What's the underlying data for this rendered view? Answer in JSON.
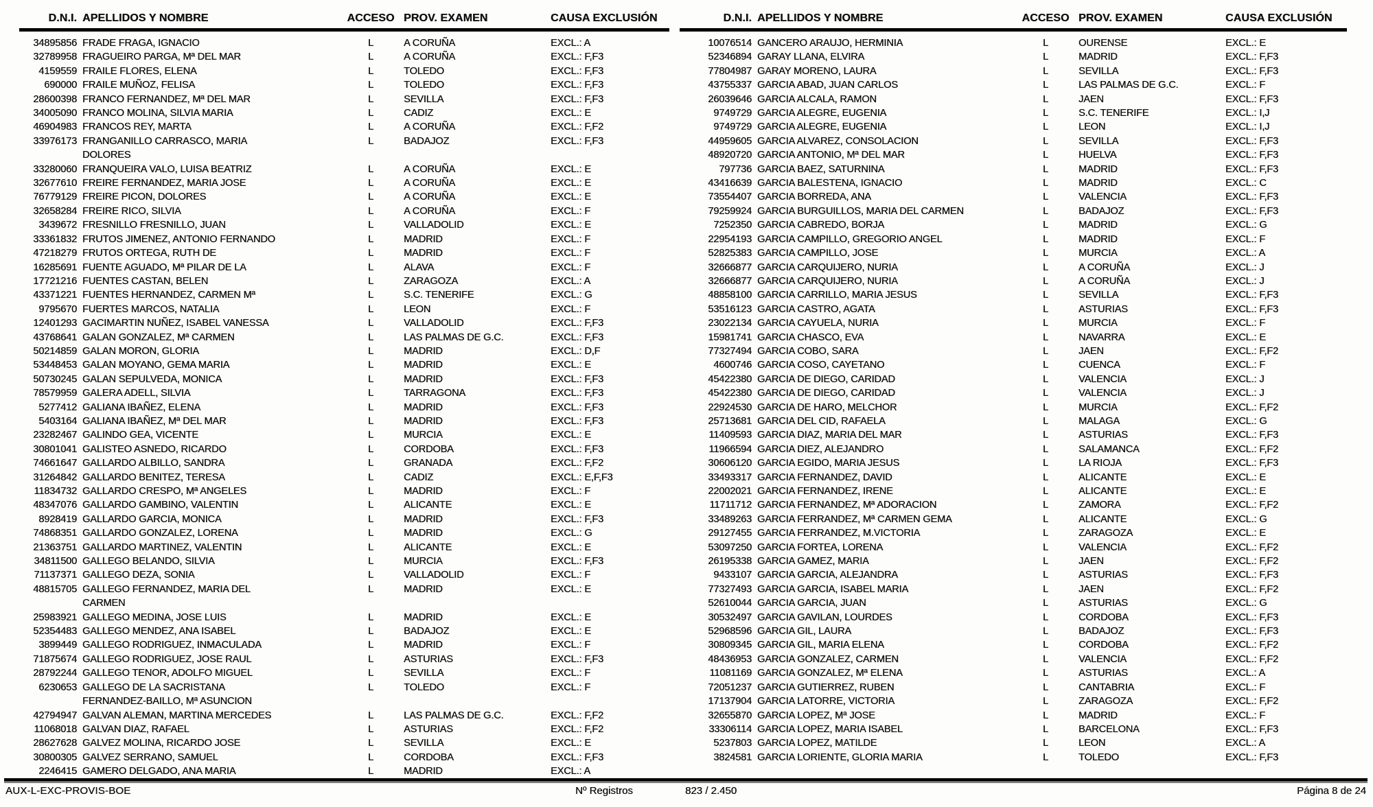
{
  "columns": {
    "dni": "D.N.I.",
    "name": "APELLIDOS Y NOMBRE",
    "acceso": "ACCESO",
    "prov": "PROV. EXAMEN",
    "causa": "CAUSA EXCLUSIÓN"
  },
  "left_rows": [
    {
      "dni": "34895856",
      "name": "FRADE FRAGA, IGNACIO",
      "acceso": "L",
      "prov": "A CORUÑA",
      "causa": "EXCL.: A"
    },
    {
      "dni": "32789958",
      "name": "FRAGUEIRO PARGA, Mª DEL MAR",
      "acceso": "L",
      "prov": "A CORUÑA",
      "causa": "EXCL.: F,F3"
    },
    {
      "dni": "4159559",
      "name": "FRAILE FLORES, ELENA",
      "acceso": "L",
      "prov": "TOLEDO",
      "causa": "EXCL.: F,F3"
    },
    {
      "dni": "690000",
      "name": "FRAILE MUÑOZ, FELISA",
      "acceso": "L",
      "prov": "TOLEDO",
      "causa": "EXCL.: F,F3"
    },
    {
      "dni": "28600398",
      "name": "FRANCO FERNANDEZ, Mª DEL MAR",
      "acceso": "L",
      "prov": "SEVILLA",
      "causa": "EXCL.: F,F3"
    },
    {
      "dni": "34005090",
      "name": "FRANCO MOLINA, SILVIA MARIA",
      "acceso": "L",
      "prov": "CADIZ",
      "causa": "EXCL.: E"
    },
    {
      "dni": "46904983",
      "name": "FRANCOS REY, MARTA",
      "acceso": "L",
      "prov": "A CORUÑA",
      "causa": "EXCL.: F,F2"
    },
    {
      "dni": "33976173",
      "name": "FRANGANILLO CARRASCO, MARIA\nDOLORES",
      "acceso": "L",
      "prov": "BADAJOZ",
      "causa": "EXCL.: F,F3"
    },
    {
      "dni": "33280060",
      "name": "FRANQUEIRA VALO, LUISA BEATRIZ",
      "acceso": "L",
      "prov": "A CORUÑA",
      "causa": "EXCL.: E"
    },
    {
      "dni": "32677610",
      "name": "FREIRE FERNANDEZ, MARIA JOSE",
      "acceso": "L",
      "prov": "A CORUÑA",
      "causa": "EXCL.: E"
    },
    {
      "dni": "76779129",
      "name": "FREIRE PICON, DOLORES",
      "acceso": "L",
      "prov": "A CORUÑA",
      "causa": "EXCL.: E"
    },
    {
      "dni": "32658284",
      "name": "FREIRE RICO, SILVIA",
      "acceso": "L",
      "prov": "A CORUÑA",
      "causa": "EXCL.: F"
    },
    {
      "dni": "3439672",
      "name": "FRESNILLO FRESNILLO, JUAN",
      "acceso": "L",
      "prov": "VALLADOLID",
      "causa": "EXCL.: E"
    },
    {
      "dni": "33361832",
      "name": "FRUTOS JIMENEZ, ANTONIO FERNANDO",
      "acceso": "L",
      "prov": "MADRID",
      "causa": "EXCL.: F"
    },
    {
      "dni": "47218279",
      "name": "FRUTOS ORTEGA, RUTH DE",
      "acceso": "L",
      "prov": "MADRID",
      "causa": "EXCL.: F"
    },
    {
      "dni": "16285691",
      "name": "FUENTE AGUADO, Mª PILAR DE LA",
      "acceso": "L",
      "prov": "ALAVA",
      "causa": "EXCL.: F"
    },
    {
      "dni": "17721216",
      "name": "FUENTES CASTAN, BELEN",
      "acceso": "L",
      "prov": "ZARAGOZA",
      "causa": "EXCL.: A"
    },
    {
      "dni": "43371221",
      "name": "FUENTES HERNANDEZ, CARMEN Mª",
      "acceso": "L",
      "prov": "S.C. TENERIFE",
      "causa": "EXCL.: G"
    },
    {
      "dni": "9795670",
      "name": "FUERTES MARCOS, NATALIA",
      "acceso": "L",
      "prov": "LEON",
      "causa": "EXCL.: F"
    },
    {
      "dni": "12401293",
      "name": "GACIMARTIN NUÑEZ, ISABEL VANESSA",
      "acceso": "L",
      "prov": "VALLADOLID",
      "causa": "EXCL.: F,F3"
    },
    {
      "dni": "43768641",
      "name": "GALAN GONZALEZ, Mª CARMEN",
      "acceso": "L",
      "prov": "LAS PALMAS DE G.C.",
      "causa": "EXCL.: F,F3"
    },
    {
      "dni": "50214859",
      "name": "GALAN MORON, GLORIA",
      "acceso": "L",
      "prov": "MADRID",
      "causa": "EXCL.: D,F"
    },
    {
      "dni": "53448453",
      "name": "GALAN MOYANO, GEMA MARIA",
      "acceso": "L",
      "prov": "MADRID",
      "causa": "EXCL.: E"
    },
    {
      "dni": "50730245",
      "name": "GALAN SEPULVEDA, MONICA",
      "acceso": "L",
      "prov": "MADRID",
      "causa": "EXCL.: F,F3"
    },
    {
      "dni": "78579959",
      "name": "GALERA ADELL, SILVIA",
      "acceso": "L",
      "prov": "TARRAGONA",
      "causa": "EXCL.: F,F3"
    },
    {
      "dni": "5277412",
      "name": "GALIANA IBAÑEZ, ELENA",
      "acceso": "L",
      "prov": "MADRID",
      "causa": "EXCL.: F,F3"
    },
    {
      "dni": "5403164",
      "name": "GALIANA IBAÑEZ, Mª DEL MAR",
      "acceso": "L",
      "prov": "MADRID",
      "causa": "EXCL.: F,F3"
    },
    {
      "dni": "23282467",
      "name": "GALINDO GEA, VICENTE",
      "acceso": "L",
      "prov": "MURCIA",
      "causa": "EXCL.: E"
    },
    {
      "dni": "30801041",
      "name": "GALISTEO ASNEDO, RICARDO",
      "acceso": "L",
      "prov": "CORDOBA",
      "causa": "EXCL.: F,F3"
    },
    {
      "dni": "74661647",
      "name": "GALLARDO ALBILLO, SANDRA",
      "acceso": "L",
      "prov": "GRANADA",
      "causa": "EXCL.: F,F2"
    },
    {
      "dni": "31264842",
      "name": "GALLARDO BENITEZ, TERESA",
      "acceso": "L",
      "prov": "CADIZ",
      "causa": "EXCL.: E,F,F3"
    },
    {
      "dni": "11834732",
      "name": "GALLARDO CRESPO, Mª ANGELES",
      "acceso": "L",
      "prov": "MADRID",
      "causa": "EXCL.: F"
    },
    {
      "dni": "48347076",
      "name": "GALLARDO GAMBINO, VALENTIN",
      "acceso": "L",
      "prov": "ALICANTE",
      "causa": "EXCL.: E"
    },
    {
      "dni": "8928419",
      "name": "GALLARDO GARCIA, MONICA",
      "acceso": "L",
      "prov": "MADRID",
      "causa": "EXCL.: F,F3"
    },
    {
      "dni": "74868351",
      "name": "GALLARDO GONZALEZ, LORENA",
      "acceso": "L",
      "prov": "MADRID",
      "causa": "EXCL.: G"
    },
    {
      "dni": "21363751",
      "name": "GALLARDO MARTINEZ, VALENTIN",
      "acceso": "L",
      "prov": "ALICANTE",
      "causa": "EXCL.: E"
    },
    {
      "dni": "34811500",
      "name": "GALLEGO BELANDO, SILVIA",
      "acceso": "L",
      "prov": "MURCIA",
      "causa": "EXCL.: F,F3"
    },
    {
      "dni": "71137371",
      "name": "GALLEGO DEZA, SONIA",
      "acceso": "L",
      "prov": "VALLADOLID",
      "causa": "EXCL.: F"
    },
    {
      "dni": "48815705",
      "name": "GALLEGO FERNANDEZ, MARIA DEL\nCARMEN",
      "acceso": "L",
      "prov": "MADRID",
      "causa": "EXCL.: E"
    },
    {
      "dni": "25983921",
      "name": "GALLEGO MEDINA, JOSE LUIS",
      "acceso": "L",
      "prov": "MADRID",
      "causa": "EXCL.: E"
    },
    {
      "dni": "52354483",
      "name": "GALLEGO MENDEZ, ANA ISABEL",
      "acceso": "L",
      "prov": "BADAJOZ",
      "causa": "EXCL.: E"
    },
    {
      "dni": "3899449",
      "name": "GALLEGO RODRIGUEZ, INMACULADA",
      "acceso": "L",
      "prov": "MADRID",
      "causa": "EXCL.: F"
    },
    {
      "dni": "71875674",
      "name": "GALLEGO RODRIGUEZ, JOSE RAUL",
      "acceso": "L",
      "prov": "ASTURIAS",
      "causa": "EXCL.: F,F3"
    },
    {
      "dni": "28792244",
      "name": "GALLEGO TENOR, ADOLFO MIGUEL",
      "acceso": "L",
      "prov": "SEVILLA",
      "causa": "EXCL.: F"
    },
    {
      "dni": "6230653",
      "name": "GALLEGO DE LA SACRISTANA\nFERNANDEZ-BAILLO, Mª ASUNCION",
      "acceso": "L",
      "prov": "TOLEDO",
      "causa": "EXCL.: F"
    },
    {
      "dni": "42794947",
      "name": "GALVAN ALEMAN, MARTINA MERCEDES",
      "acceso": "L",
      "prov": "LAS PALMAS DE G.C.",
      "causa": "EXCL.: F,F2"
    },
    {
      "dni": "11068018",
      "name": "GALVAN DIAZ, RAFAEL",
      "acceso": "L",
      "prov": "ASTURIAS",
      "causa": "EXCL.: F,F2"
    },
    {
      "dni": "28627628",
      "name": "GALVEZ MOLINA, RICARDO JOSE",
      "acceso": "L",
      "prov": "SEVILLA",
      "causa": "EXCL.: E"
    },
    {
      "dni": "30800305",
      "name": "GALVEZ SERRANO, SAMUEL",
      "acceso": "L",
      "prov": "CORDOBA",
      "causa": "EXCL.: F,F3"
    },
    {
      "dni": "2246415",
      "name": "GAMERO DELGADO, ANA MARIA",
      "acceso": "L",
      "prov": "MADRID",
      "causa": "EXCL.: A"
    }
  ],
  "right_rows": [
    {
      "dni": "10076514",
      "name": "GANCERO ARAUJO, HERMINIA",
      "acceso": "L",
      "prov": "OURENSE",
      "causa": "EXCL.: E"
    },
    {
      "dni": "52346894",
      "name": "GARAY LLANA, ELVIRA",
      "acceso": "L",
      "prov": "MADRID",
      "causa": "EXCL.: F,F3"
    },
    {
      "dni": "77804987",
      "name": "GARAY MORENO, LAURA",
      "acceso": "L",
      "prov": "SEVILLA",
      "causa": "EXCL.: F,F3"
    },
    {
      "dni": "43755337",
      "name": "GARCIA ABAD, JUAN CARLOS",
      "acceso": "L",
      "prov": "LAS PALMAS DE G.C.",
      "causa": "EXCL.: F"
    },
    {
      "dni": "26039646",
      "name": "GARCIA ALCALA, RAMON",
      "acceso": "L",
      "prov": "JAEN",
      "causa": "EXCL.: F,F3"
    },
    {
      "dni": "9749729",
      "name": "GARCIA ALEGRE, EUGENIA",
      "acceso": "L",
      "prov": "S.C. TENERIFE",
      "causa": "EXCL.: I,J"
    },
    {
      "dni": "9749729",
      "name": "GARCIA ALEGRE, EUGENIA",
      "acceso": "L",
      "prov": "LEON",
      "causa": "EXCL.: I,J"
    },
    {
      "dni": "44959605",
      "name": "GARCIA ALVAREZ, CONSOLACION",
      "acceso": "L",
      "prov": "SEVILLA",
      "causa": "EXCL.: F,F3"
    },
    {
      "dni": "48920720",
      "name": "GARCIA ANTONIO, Mª DEL MAR",
      "acceso": "L",
      "prov": "HUELVA",
      "causa": "EXCL.: F,F3"
    },
    {
      "dni": "797736",
      "name": "GARCIA BAEZ, SATURNINA",
      "acceso": "L",
      "prov": "MADRID",
      "causa": "EXCL.: F,F3"
    },
    {
      "dni": "43416639",
      "name": "GARCIA BALESTENA, IGNACIO",
      "acceso": "L",
      "prov": "MADRID",
      "causa": "EXCL.: C"
    },
    {
      "dni": "73554407",
      "name": "GARCIA BORREDA, ANA",
      "acceso": "L",
      "prov": "VALENCIA",
      "causa": "EXCL.: F,F3"
    },
    {
      "dni": "79259924",
      "name": "GARCIA BURGUILLOS, MARIA DEL CARMEN",
      "acceso": "L",
      "prov": "BADAJOZ",
      "causa": "EXCL.: F,F3"
    },
    {
      "dni": "7252350",
      "name": "GARCIA CABREDO, BORJA",
      "acceso": "L",
      "prov": "MADRID",
      "causa": "EXCL.: G"
    },
    {
      "dni": "22954193",
      "name": "GARCIA CAMPILLO, GREGORIO ANGEL",
      "acceso": "L",
      "prov": "MADRID",
      "causa": "EXCL.: F"
    },
    {
      "dni": "52825383",
      "name": "GARCIA CAMPILLO, JOSE",
      "acceso": "L",
      "prov": "MURCIA",
      "causa": "EXCL.: A"
    },
    {
      "dni": "32666877",
      "name": "GARCIA CARQUIJERO, NURIA",
      "acceso": "L",
      "prov": "A CORUÑA",
      "causa": "EXCL.: J"
    },
    {
      "dni": "32666877",
      "name": "GARCIA CARQUIJERO, NURIA",
      "acceso": "L",
      "prov": "A CORUÑA",
      "causa": "EXCL.: J"
    },
    {
      "dni": "48858100",
      "name": "GARCIA CARRILLO, MARIA JESUS",
      "acceso": "L",
      "prov": "SEVILLA",
      "causa": "EXCL.: F,F3"
    },
    {
      "dni": "53516123",
      "name": "GARCIA CASTRO, AGATA",
      "acceso": "L",
      "prov": "ASTURIAS",
      "causa": "EXCL.: F,F3"
    },
    {
      "dni": "23022134",
      "name": "GARCIA CAYUELA, NURIA",
      "acceso": "L",
      "prov": "MURCIA",
      "causa": "EXCL.: F"
    },
    {
      "dni": "15981741",
      "name": "GARCIA CHASCO, EVA",
      "acceso": "L",
      "prov": "NAVARRA",
      "causa": "EXCL.: E"
    },
    {
      "dni": "77327494",
      "name": "GARCIA COBO, SARA",
      "acceso": "L",
      "prov": "JAEN",
      "causa": "EXCL.: F,F2"
    },
    {
      "dni": "4600746",
      "name": "GARCIA COSO, CAYETANO",
      "acceso": "L",
      "prov": "CUENCA",
      "causa": "EXCL.: F"
    },
    {
      "dni": "45422380",
      "name": "GARCIA DE DIEGO, CARIDAD",
      "acceso": "L",
      "prov": "VALENCIA",
      "causa": "EXCL.: J"
    },
    {
      "dni": "45422380",
      "name": "GARCIA DE DIEGO, CARIDAD",
      "acceso": "L",
      "prov": "VALENCIA",
      "causa": "EXCL.: J"
    },
    {
      "dni": "22924530",
      "name": "GARCIA DE HARO, MELCHOR",
      "acceso": "L",
      "prov": "MURCIA",
      "causa": "EXCL.: F,F2"
    },
    {
      "dni": "25713681",
      "name": "GARCIA DEL CID, RAFAELA",
      "acceso": "L",
      "prov": "MALAGA",
      "causa": "EXCL.: G"
    },
    {
      "dni": "11409593",
      "name": "GARCIA DIAZ, MARIA DEL MAR",
      "acceso": "L",
      "prov": "ASTURIAS",
      "causa": "EXCL.: F,F3"
    },
    {
      "dni": "11966594",
      "name": "GARCIA DIEZ, ALEJANDRO",
      "acceso": "L",
      "prov": "SALAMANCA",
      "causa": "EXCL.: F,F2"
    },
    {
      "dni": "30606120",
      "name": "GARCIA EGIDO, MARIA JESUS",
      "acceso": "L",
      "prov": "LA RIOJA",
      "causa": "EXCL.: F,F3"
    },
    {
      "dni": "33493317",
      "name": "GARCIA FERNANDEZ, DAVID",
      "acceso": "L",
      "prov": "ALICANTE",
      "causa": "EXCL.: E"
    },
    {
      "dni": "22002021",
      "name": "GARCIA FERNANDEZ, IRENE",
      "acceso": "L",
      "prov": "ALICANTE",
      "causa": "EXCL.: E"
    },
    {
      "dni": "11711712",
      "name": "GARCIA FERNANDEZ, Mª ADORACION",
      "acceso": "L",
      "prov": "ZAMORA",
      "causa": "EXCL.: F,F2"
    },
    {
      "dni": "33489263",
      "name": "GARCIA FERRANDEZ, Mª CARMEN GEMA",
      "acceso": "L",
      "prov": "ALICANTE",
      "causa": "EXCL.: G"
    },
    {
      "dni": "29127455",
      "name": "GARCIA FERRANDEZ, M.VICTORIA",
      "acceso": "L",
      "prov": "ZARAGOZA",
      "causa": "EXCL.: E"
    },
    {
      "dni": "53097250",
      "name": "GARCIA FORTEA, LORENA",
      "acceso": "L",
      "prov": "VALENCIA",
      "causa": "EXCL.: F,F2"
    },
    {
      "dni": "26195338",
      "name": "GARCIA GAMEZ, MARIA",
      "acceso": "L",
      "prov": "JAEN",
      "causa": "EXCL.: F,F2"
    },
    {
      "dni": "9433107",
      "name": "GARCIA GARCIA, ALEJANDRA",
      "acceso": "L",
      "prov": "ASTURIAS",
      "causa": "EXCL.: F,F3"
    },
    {
      "dni": "77327493",
      "name": "GARCIA GARCIA, ISABEL MARIA",
      "acceso": "L",
      "prov": "JAEN",
      "causa": "EXCL.: F,F2"
    },
    {
      "dni": "52610044",
      "name": "GARCIA GARCIA, JUAN",
      "acceso": "L",
      "prov": "ASTURIAS",
      "causa": "EXCL.: G"
    },
    {
      "dni": "30532497",
      "name": "GARCIA GAVILAN, LOURDES",
      "acceso": "L",
      "prov": "CORDOBA",
      "causa": "EXCL.: F,F3"
    },
    {
      "dni": "52968596",
      "name": "GARCIA GIL, LAURA",
      "acceso": "L",
      "prov": "BADAJOZ",
      "causa": "EXCL.: F,F3"
    },
    {
      "dni": "30809345",
      "name": "GARCIA GIL, MARIA ELENA",
      "acceso": "L",
      "prov": "CORDOBA",
      "causa": "EXCL.: F,F2"
    },
    {
      "dni": "48436953",
      "name": "GARCIA GONZALEZ, CARMEN",
      "acceso": "L",
      "prov": "VALENCIA",
      "causa": "EXCL.: F,F2"
    },
    {
      "dni": "11081169",
      "name": "GARCIA GONZALEZ, Mª ELENA",
      "acceso": "L",
      "prov": "ASTURIAS",
      "causa": "EXCL.: A"
    },
    {
      "dni": "72051237",
      "name": "GARCIA GUTIERREZ, RUBEN",
      "acceso": "L",
      "prov": "CANTABRIA",
      "causa": "EXCL.: F"
    },
    {
      "dni": "17137904",
      "name": "GARCIA LATORRE, VICTORIA",
      "acceso": "L",
      "prov": "ZARAGOZA",
      "causa": "EXCL.: F,F2"
    },
    {
      "dni": "32655870",
      "name": "GARCIA LOPEZ, Mª JOSE",
      "acceso": "L",
      "prov": "MADRID",
      "causa": "EXCL.: F"
    },
    {
      "dni": "33306114",
      "name": "GARCIA LOPEZ, MARIA ISABEL",
      "acceso": "L",
      "prov": "BARCELONA",
      "causa": "EXCL.: F,F3"
    },
    {
      "dni": "5237803",
      "name": "GARCIA LOPEZ, MATILDE",
      "acceso": "L",
      "prov": "LEON",
      "causa": "EXCL.: A"
    },
    {
      "dni": "3824581",
      "name": "GARCIA LORIENTE, GLORIA MARIA",
      "acceso": "L",
      "prov": "TOLEDO",
      "causa": "EXCL.: F,F3"
    }
  ],
  "footer": {
    "doc_code": "AUX-L-EXC-PROVIS-BOE",
    "registros_label": "Nº Registros",
    "registros_value": "823  /  2.450",
    "page_label": "Página 8 de 24"
  }
}
